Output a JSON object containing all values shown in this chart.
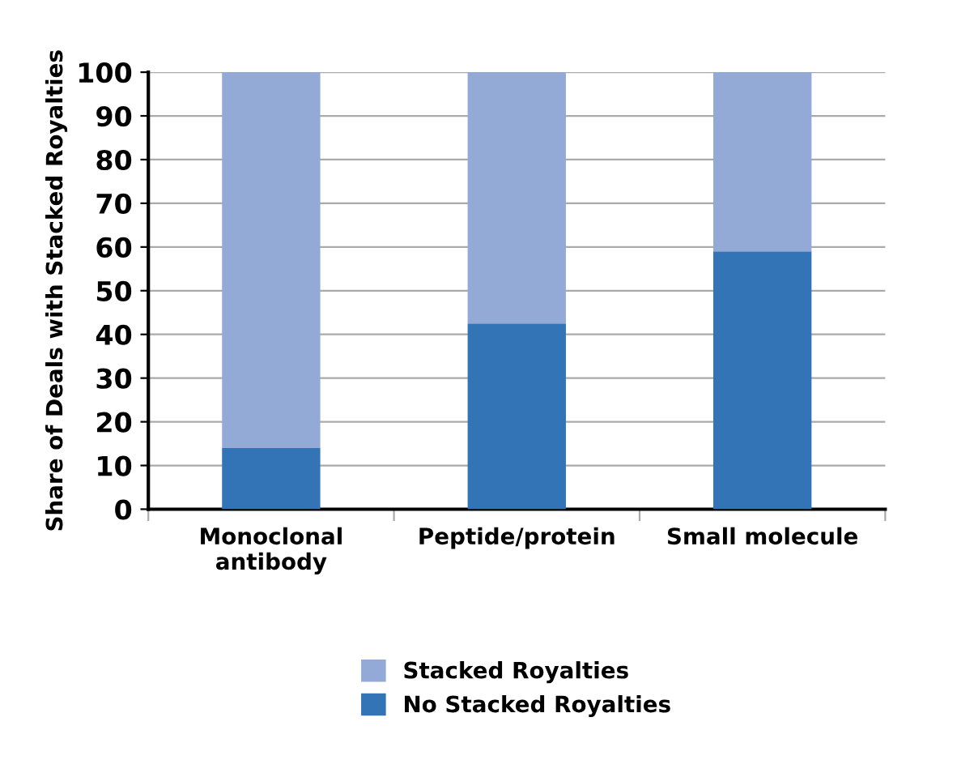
{
  "chart_data": {
    "type": "bar",
    "stacked": true,
    "ylabel": "Share of Deals with Stacked Royalties",
    "categories": [
      "Monoclonal\nantibody",
      "Peptide/protein",
      "Small molecule"
    ],
    "series": [
      {
        "name": "No Stacked Royalties",
        "color": "#3274b5",
        "values": [
          14,
          42.5,
          59
        ]
      },
      {
        "name": "Stacked Royalties",
        "color": "#93aad6",
        "values": [
          86,
          57.5,
          41
        ]
      }
    ],
    "ylim": [
      0,
      100
    ],
    "yticks": [
      0,
      10,
      20,
      30,
      40,
      50,
      60,
      70,
      80,
      90,
      100
    ],
    "grid": "y",
    "legend": "bottom"
  }
}
